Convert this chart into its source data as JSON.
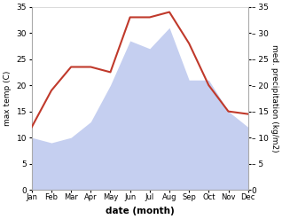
{
  "months": [
    "Jan",
    "Feb",
    "Mar",
    "Apr",
    "May",
    "Jun",
    "Jul",
    "Aug",
    "Sep",
    "Oct",
    "Nov",
    "Dec"
  ],
  "temperature": [
    12,
    19,
    23.5,
    23.5,
    22.5,
    33,
    33,
    34,
    28,
    20,
    15,
    14.5
  ],
  "precipitation": [
    10,
    9,
    10,
    13,
    20,
    28.5,
    27,
    31,
    21,
    21,
    15,
    12
  ],
  "temp_color": "#c0392b",
  "precip_color": "#c5cff0",
  "ylim": [
    0,
    35
  ],
  "yticks": [
    0,
    5,
    10,
    15,
    20,
    25,
    30,
    35
  ],
  "xlabel": "date (month)",
  "ylabel_left": "max temp (C)",
  "ylabel_right": "med. precipitation (kg/m2)",
  "bg_color": "#ffffff"
}
